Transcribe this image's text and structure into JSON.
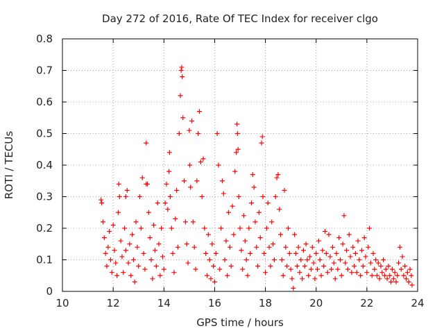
{
  "chart_data": {
    "type": "scatter",
    "title": "Day 272 of 2016, Rate Of TEC Index for receiver clgo",
    "xlabel": "GPS time / hours",
    "ylabel": "ROTI / TECUs",
    "xlim": [
      10,
      24
    ],
    "ylim": [
      0,
      0.8
    ],
    "xticks": [
      10,
      12,
      14,
      16,
      18,
      20,
      22,
      24
    ],
    "xtick_labels": [
      "10",
      "12",
      "14",
      "16",
      "18",
      "20",
      "22",
      "24"
    ],
    "yticks": [
      0,
      0.1,
      0.2,
      0.3,
      0.4,
      0.5,
      0.6,
      0.7,
      0.8
    ],
    "ytick_labels": [
      "0",
      "0.1",
      "0.2",
      "0.3",
      "0.4",
      "0.5",
      "0.6",
      "0.7",
      "0.8"
    ],
    "grid": true,
    "marker": "+",
    "color": "#ff0000",
    "series": [
      {
        "name": "ROTI",
        "points": [
          [
            11.52,
            0.29
          ],
          [
            11.55,
            0.28
          ],
          [
            11.6,
            0.22
          ],
          [
            11.65,
            0.17
          ],
          [
            11.7,
            0.12
          ],
          [
            11.75,
            0.08
          ],
          [
            11.8,
            0.14
          ],
          [
            11.85,
            0.19
          ],
          [
            11.9,
            0.1
          ],
          [
            11.95,
            0.06
          ],
          [
            12.0,
            0.21
          ],
          [
            12.05,
            0.13
          ],
          [
            12.1,
            0.09
          ],
          [
            12.15,
            0.05
          ],
          [
            12.2,
            0.25
          ],
          [
            12.22,
            0.34
          ],
          [
            12.25,
            0.3
          ],
          [
            12.3,
            0.16
          ],
          [
            12.35,
            0.11
          ],
          [
            12.4,
            0.06
          ],
          [
            12.45,
            0.2
          ],
          [
            12.5,
            0.13
          ],
          [
            12.5,
            0.3
          ],
          [
            12.55,
            0.32
          ],
          [
            12.6,
            0.09
          ],
          [
            12.65,
            0.15
          ],
          [
            12.7,
            0.05
          ],
          [
            12.75,
            0.18
          ],
          [
            12.8,
            0.1
          ],
          [
            12.85,
            0.03
          ],
          [
            12.9,
            0.22
          ],
          [
            12.95,
            0.14
          ],
          [
            13.0,
            0.08
          ],
          [
            13.05,
            0.3
          ],
          [
            13.1,
            0.2
          ],
          [
            13.15,
            0.36
          ],
          [
            13.2,
            0.12
          ],
          [
            13.25,
            0.07
          ],
          [
            13.3,
            0.47
          ],
          [
            13.3,
            0.34
          ],
          [
            13.35,
            0.34
          ],
          [
            13.4,
            0.25
          ],
          [
            13.45,
            0.17
          ],
          [
            13.5,
            0.1
          ],
          [
            13.55,
            0.04
          ],
          [
            13.6,
            0.21
          ],
          [
            13.65,
            0.13
          ],
          [
            13.7,
            0.08
          ],
          [
            13.75,
            0.28
          ],
          [
            13.8,
            0.15
          ],
          [
            13.85,
            0.05
          ],
          [
            13.9,
            0.2
          ],
          [
            13.95,
            0.11
          ],
          [
            14.0,
            0.07
          ],
          [
            14.05,
            0.28
          ],
          [
            14.1,
            0.34
          ],
          [
            14.15,
            0.26
          ],
          [
            14.2,
            0.38
          ],
          [
            14.22,
            0.44
          ],
          [
            14.25,
            0.3
          ],
          [
            14.3,
            0.2
          ],
          [
            14.35,
            0.12
          ],
          [
            14.4,
            0.06
          ],
          [
            14.45,
            0.23
          ],
          [
            14.5,
            0.32
          ],
          [
            14.55,
            0.14
          ],
          [
            14.6,
            0.5
          ],
          [
            14.65,
            0.62
          ],
          [
            14.68,
            0.7
          ],
          [
            14.7,
            0.71
          ],
          [
            14.72,
            0.68
          ],
          [
            14.75,
            0.55
          ],
          [
            14.8,
            0.35
          ],
          [
            14.85,
            0.22
          ],
          [
            14.9,
            0.15
          ],
          [
            14.95,
            0.09
          ],
          [
            15.0,
            0.51
          ],
          [
            15.02,
            0.4
          ],
          [
            15.05,
            0.33
          ],
          [
            15.1,
            0.54
          ],
          [
            15.15,
            0.22
          ],
          [
            15.2,
            0.14
          ],
          [
            15.25,
            0.07
          ],
          [
            15.3,
            0.35
          ],
          [
            15.35,
            0.5
          ],
          [
            15.4,
            0.57
          ],
          [
            15.45,
            0.41
          ],
          [
            15.5,
            0.3
          ],
          [
            15.55,
            0.42
          ],
          [
            15.6,
            0.2
          ],
          [
            15.65,
            0.12
          ],
          [
            15.7,
            0.05
          ],
          [
            15.75,
            0.18
          ],
          [
            15.8,
            0.1
          ],
          [
            15.85,
            0.04
          ],
          [
            15.9,
            0.15
          ],
          [
            15.95,
            0.08
          ],
          [
            16.0,
            0.03
          ],
          [
            16.05,
            0.12
          ],
          [
            16.1,
            0.5
          ],
          [
            16.15,
            0.4
          ],
          [
            16.2,
            0.07
          ],
          [
            16.25,
            0.2
          ],
          [
            16.3,
            0.35
          ],
          [
            16.35,
            0.31
          ],
          [
            16.4,
            0.1
          ],
          [
            16.45,
            0.16
          ],
          [
            16.5,
            0.05
          ],
          [
            16.55,
            0.25
          ],
          [
            16.6,
            0.14
          ],
          [
            16.65,
            0.08
          ],
          [
            16.7,
            0.27
          ],
          [
            16.75,
            0.18
          ],
          [
            16.8,
            0.38
          ],
          [
            16.85,
            0.44
          ],
          [
            16.88,
            0.53
          ],
          [
            16.9,
            0.5
          ],
          [
            16.92,
            0.45
          ],
          [
            16.95,
            0.3
          ],
          [
            17.0,
            0.2
          ],
          [
            17.05,
            0.13
          ],
          [
            17.1,
            0.07
          ],
          [
            17.15,
            0.24
          ],
          [
            17.2,
            0.16
          ],
          [
            17.25,
            0.1
          ],
          [
            17.3,
            0.05
          ],
          [
            17.35,
            0.2
          ],
          [
            17.4,
            0.12
          ],
          [
            17.45,
            0.28
          ],
          [
            17.5,
            0.37
          ],
          [
            17.55,
            0.33
          ],
          [
            17.6,
            0.22
          ],
          [
            17.65,
            0.14
          ],
          [
            17.7,
            0.08
          ],
          [
            17.75,
            0.25
          ],
          [
            17.8,
            0.17
          ],
          [
            17.85,
            0.47
          ],
          [
            17.88,
            0.49
          ],
          [
            17.9,
            0.3
          ],
          [
            17.95,
            0.12
          ],
          [
            18.0,
            0.06
          ],
          [
            18.05,
            0.2
          ],
          [
            18.1,
            0.28
          ],
          [
            18.15,
            0.14
          ],
          [
            18.2,
            0.08
          ],
          [
            18.25,
            0.22
          ],
          [
            18.3,
            0.15
          ],
          [
            18.35,
            0.1
          ],
          [
            18.4,
            0.3
          ],
          [
            18.45,
            0.36
          ],
          [
            18.5,
            0.37
          ],
          [
            18.55,
            0.26
          ],
          [
            18.6,
            0.18
          ],
          [
            18.65,
            0.1
          ],
          [
            18.7,
            0.05
          ],
          [
            18.75,
            0.32
          ],
          [
            18.8,
            0.14
          ],
          [
            18.85,
            0.08
          ],
          [
            18.9,
            0.2
          ],
          [
            18.95,
            0.12
          ],
          [
            19.0,
            0.07
          ],
          [
            19.05,
            0.04
          ],
          [
            19.1,
            0.01
          ],
          [
            19.15,
            0.18
          ],
          [
            19.2,
            0.12
          ],
          [
            19.25,
            0.08
          ],
          [
            19.3,
            0.14
          ],
          [
            19.35,
            0.06
          ],
          [
            19.4,
            0.1
          ],
          [
            19.45,
            0.04
          ],
          [
            19.5,
            0.13
          ],
          [
            19.55,
            0.08
          ],
          [
            19.6,
            0.15
          ],
          [
            19.65,
            0.1
          ],
          [
            19.7,
            0.05
          ],
          [
            19.75,
            0.11
          ],
          [
            19.8,
            0.07
          ],
          [
            19.85,
            0.14
          ],
          [
            19.9,
            0.09
          ],
          [
            19.95,
            0.04
          ],
          [
            20.0,
            0.12
          ],
          [
            20.05,
            0.07
          ],
          [
            20.1,
            0.16
          ],
          [
            20.15,
            0.1
          ],
          [
            20.2,
            0.05
          ],
          [
            20.25,
            0.13
          ],
          [
            20.3,
            0.08
          ],
          [
            20.35,
            0.19
          ],
          [
            20.4,
            0.12
          ],
          [
            20.45,
            0.06
          ],
          [
            20.5,
            0.18
          ],
          [
            20.55,
            0.11
          ],
          [
            20.6,
            0.07
          ],
          [
            20.65,
            0.14
          ],
          [
            20.7,
            0.09
          ],
          [
            20.75,
            0.04
          ],
          [
            20.8,
            0.12
          ],
          [
            20.85,
            0.07
          ],
          [
            20.9,
            0.17
          ],
          [
            20.95,
            0.1
          ],
          [
            21.0,
            0.05
          ],
          [
            21.05,
            0.15
          ],
          [
            21.1,
            0.24
          ],
          [
            21.15,
            0.09
          ],
          [
            21.2,
            0.13
          ],
          [
            21.25,
            0.07
          ],
          [
            21.3,
            0.18
          ],
          [
            21.35,
            0.11
          ],
          [
            21.4,
            0.06
          ],
          [
            21.45,
            0.14
          ],
          [
            21.5,
            0.08
          ],
          [
            21.55,
            0.12
          ],
          [
            21.6,
            0.06
          ],
          [
            21.65,
            0.16
          ],
          [
            21.7,
            0.1
          ],
          [
            21.75,
            0.05
          ],
          [
            21.8,
            0.13
          ],
          [
            21.85,
            0.08
          ],
          [
            21.9,
            0.17
          ],
          [
            21.95,
            0.11
          ],
          [
            22.0,
            0.06
          ],
          [
            22.05,
            0.14
          ],
          [
            22.1,
            0.2
          ],
          [
            22.15,
            0.09
          ],
          [
            22.2,
            0.05
          ],
          [
            22.25,
            0.12
          ],
          [
            22.3,
            0.07
          ],
          [
            22.35,
            0.1
          ],
          [
            22.4,
            0.05
          ],
          [
            22.45,
            0.09
          ],
          [
            22.5,
            0.04
          ],
          [
            22.55,
            0.08
          ],
          [
            22.6,
            0.06
          ],
          [
            22.65,
            0.1
          ],
          [
            22.7,
            0.05
          ],
          [
            22.75,
            0.07
          ],
          [
            22.8,
            0.04
          ],
          [
            22.85,
            0.08
          ],
          [
            22.9,
            0.05
          ],
          [
            22.95,
            0.03
          ],
          [
            23.0,
            0.07
          ],
          [
            23.05,
            0.04
          ],
          [
            23.1,
            0.06
          ],
          [
            23.15,
            0.03
          ],
          [
            23.2,
            0.05
          ],
          [
            23.25,
            0.09
          ],
          [
            23.3,
            0.14
          ],
          [
            23.35,
            0.07
          ],
          [
            23.4,
            0.11
          ],
          [
            23.45,
            0.05
          ],
          [
            23.5,
            0.08
          ],
          [
            23.55,
            0.04
          ],
          [
            23.6,
            0.06
          ],
          [
            23.65,
            0.03
          ],
          [
            23.7,
            0.07
          ],
          [
            23.75,
            0.05
          ],
          [
            23.78,
            0.02
          ]
        ]
      }
    ]
  }
}
